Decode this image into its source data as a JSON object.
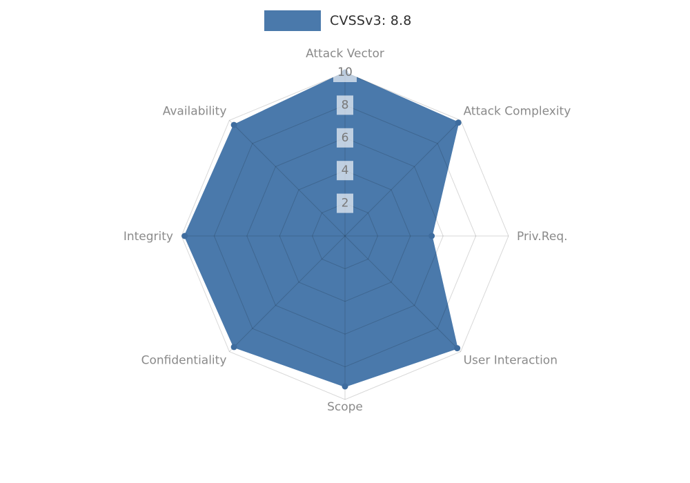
{
  "legend": {
    "label": "CVSSv3: 8.8"
  },
  "chart_data": {
    "type": "radar",
    "title": "CVSSv3: 8.8",
    "categories": [
      "Attack Vector",
      "Attack Complexity",
      "Priv.Req.",
      "User Interaction",
      "Scope",
      "Confidentiality",
      "Integrity",
      "Availability"
    ],
    "series": [
      {
        "name": "CVSSv3: 8.8",
        "color": "#4a79ab",
        "values": [
          10,
          9.8,
          5.3,
          9.7,
          9.2,
          9.6,
          9.8,
          9.6
        ]
      }
    ],
    "ticks": [
      2,
      4,
      6,
      8,
      10
    ],
    "rlim": [
      0,
      10
    ],
    "grid": true,
    "legend_position": "top-center"
  },
  "colors": {
    "fill": "#4a79ab",
    "grid_line": "rgba(0,0,0,0.155)",
    "axis_label": "#8a8a8a",
    "tick_text": "#787878",
    "tick_box": "rgba(255,255,255,0.65)",
    "dot": "#3e6c9e"
  }
}
